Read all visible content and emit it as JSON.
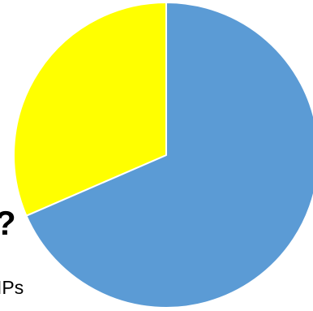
{
  "chart_data": {
    "type": "pie",
    "title": "",
    "slices": [
      {
        "value": 68.5,
        "color": "#5b9bd5"
      },
      {
        "value": 31.5,
        "color": "#ffff00"
      }
    ],
    "legend": "none"
  },
  "text_fragments": {
    "question_mark": "?",
    "ips_fragment": "IPs"
  },
  "colors": {
    "background": "#ffffff",
    "slice_edge": "#ffffff"
  }
}
